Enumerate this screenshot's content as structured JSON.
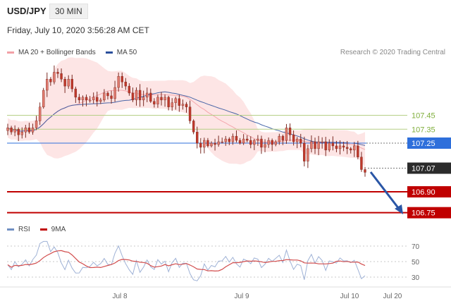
{
  "header": {
    "symbol": "USD/JPY",
    "timeframe": "30 MIN"
  },
  "date_text": "Friday, July 10, 2020 3:56:28 AM CET",
  "legend": {
    "bollinger": "MA 20 + Bollinger Bands",
    "ma50": "MA 50",
    "rsi": "RSI",
    "ma9": "9MA"
  },
  "copyright": "Research © 2020 Trading Central",
  "colors": {
    "bollinger": "#f7a8a8",
    "ma50": "#2a4f9c",
    "candle": "#c0392b",
    "resistance": "#7fae3b",
    "support": "#c00000",
    "pivot": "#2e6fdb",
    "current": "#2b2b2b",
    "arrow": "#2a56a6"
  },
  "chart_data": [
    {
      "type": "line",
      "title": "USD/JPY",
      "x_ticks": [
        "Jul 8",
        "Jul 9",
        "Jul 10",
        "Jul 20"
      ],
      "ylim": [
        106.7,
        107.6
      ],
      "price_levels": [
        {
          "value": 107.45,
          "label": "107.45",
          "kind": "resistance"
        },
        {
          "value": 107.35,
          "label": "107.35",
          "kind": "resistance"
        },
        {
          "value": 107.25,
          "label": "107.25",
          "kind": "pivot"
        },
        {
          "value": 107.07,
          "label": "107.07",
          "kind": "current"
        },
        {
          "value": 106.9,
          "label": "106.90",
          "kind": "support"
        },
        {
          "value": 106.75,
          "label": "106.75",
          "kind": "support"
        }
      ],
      "series": [
        {
          "name": "MA 20 + Bollinger Bands",
          "close": [
            107.36,
            107.33,
            107.35,
            107.31,
            107.33,
            107.36,
            107.33,
            107.36,
            107.41,
            107.51,
            107.63,
            107.71,
            107.69,
            107.76,
            107.75,
            107.71,
            107.66,
            107.71,
            107.64,
            107.58,
            107.56,
            107.58,
            107.56,
            107.56,
            107.58,
            107.55,
            107.56,
            107.61,
            107.59,
            107.57,
            107.65,
            107.73,
            107.69,
            107.66,
            107.61,
            107.56,
            107.63,
            107.56,
            107.58,
            107.61,
            107.55,
            107.53,
            107.58,
            107.56,
            107.58,
            107.51,
            107.54,
            107.57,
            107.52,
            107.53,
            107.51,
            107.41,
            107.33,
            107.25,
            107.22,
            107.27,
            107.23,
            107.25,
            107.24,
            107.26,
            107.26,
            107.28,
            107.26,
            107.3,
            107.27,
            107.25,
            107.28,
            107.27,
            107.24,
            107.27,
            107.28,
            107.22,
            107.24,
            107.27,
            107.24,
            107.26,
            107.3,
            107.27,
            107.36,
            107.31,
            107.26,
            107.28,
            107.25,
            107.12,
            107.21,
            107.26,
            107.21,
            107.26,
            107.26,
            107.2,
            107.25,
            107.23,
            107.21,
            107.23,
            107.22,
            107.21,
            107.2,
            107.23,
            107.15,
            107.06,
            107.04
          ]
        },
        {
          "name": "MA 50"
        }
      ]
    },
    {
      "type": "line",
      "title": "RSI",
      "y_ticks": [
        70,
        50,
        30
      ],
      "ylim": [
        20,
        80
      ],
      "series": [
        {
          "name": "RSI"
        },
        {
          "name": "9MA"
        }
      ]
    }
  ]
}
